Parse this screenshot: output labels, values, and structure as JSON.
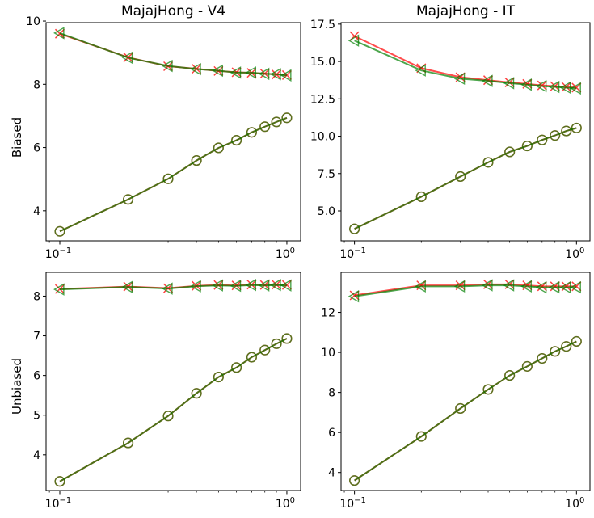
{
  "figure": {
    "row_labels": [
      "Biased",
      "Unbiased"
    ]
  },
  "chart_data": [
    {
      "type": "line",
      "title": "MajajHong - V4",
      "ylabel": "Biased",
      "xscale": "log",
      "xlim": [
        0.087,
        1.15
      ],
      "ylim": [
        3.05,
        9.95
      ],
      "yticks": [
        4,
        6,
        8,
        10
      ],
      "ytick_labels": [
        "4",
        "6",
        "8",
        "10"
      ],
      "xticks": [
        0.1,
        1
      ],
      "xtick_labels": [
        "10",
        "10"
      ],
      "xtick_exponents": [
        "−1",
        "0"
      ],
      "x": [
        0.1,
        0.2,
        0.3,
        0.4,
        0.5,
        0.6,
        0.7,
        0.8,
        0.9,
        1.0
      ],
      "series": [
        {
          "color": "#ff0000",
          "marker": "x",
          "values": [
            9.6,
            8.85,
            8.57,
            8.49,
            8.42,
            8.38,
            8.36,
            8.34,
            8.31,
            8.29
          ]
        },
        {
          "color": "#008000",
          "marker": "triangle-left",
          "values": [
            9.62,
            8.84,
            8.58,
            8.48,
            8.43,
            8.37,
            8.37,
            8.33,
            8.32,
            8.28
          ]
        },
        {
          "color": "#ff0000",
          "marker": "o",
          "values": [
            3.35,
            4.36,
            5.01,
            5.59,
            5.99,
            6.23,
            6.48,
            6.66,
            6.81,
            6.94
          ]
        },
        {
          "color": "#008000",
          "marker": "o",
          "values": [
            3.35,
            4.36,
            5.01,
            5.59,
            5.99,
            6.23,
            6.48,
            6.66,
            6.81,
            6.94
          ]
        }
      ]
    },
    {
      "type": "line",
      "title": "MajajHong - IT",
      "ylabel": "",
      "xscale": "log",
      "xlim": [
        0.087,
        1.15
      ],
      "ylim": [
        3.0,
        17.6
      ],
      "yticks": [
        5.0,
        7.5,
        10.0,
        12.5,
        15.0,
        17.5
      ],
      "ytick_labels": [
        "5.0",
        "7.5",
        "10.0",
        "12.5",
        "15.0",
        "17.5"
      ],
      "xticks": [
        0.1,
        1
      ],
      "xtick_labels": [
        "10",
        "10"
      ],
      "xtick_exponents": [
        "−1",
        "0"
      ],
      "x": [
        0.1,
        0.2,
        0.3,
        0.4,
        0.5,
        0.6,
        0.7,
        0.8,
        0.9,
        1.0
      ],
      "series": [
        {
          "color": "#ff0000",
          "marker": "x",
          "values": [
            16.7,
            14.55,
            13.95,
            13.75,
            13.6,
            13.5,
            13.4,
            13.35,
            13.3,
            13.25
          ]
        },
        {
          "color": "#008000",
          "marker": "triangle-left",
          "values": [
            16.4,
            14.4,
            13.85,
            13.7,
            13.55,
            13.45,
            13.35,
            13.3,
            13.25,
            13.2
          ]
        },
        {
          "color": "#ff0000",
          "marker": "o",
          "values": [
            3.8,
            5.95,
            7.3,
            8.25,
            8.95,
            9.35,
            9.75,
            10.05,
            10.35,
            10.55
          ]
        },
        {
          "color": "#008000",
          "marker": "o",
          "values": [
            3.8,
            5.95,
            7.3,
            8.25,
            8.95,
            9.35,
            9.75,
            10.05,
            10.35,
            10.55
          ]
        }
      ]
    },
    {
      "type": "line",
      "title": "",
      "ylabel": "Unbiased",
      "xscale": "log",
      "xlim": [
        0.087,
        1.15
      ],
      "ylim": [
        3.1,
        8.6
      ],
      "yticks": [
        4,
        5,
        6,
        7,
        8
      ],
      "ytick_labels": [
        "4",
        "5",
        "6",
        "7",
        "8"
      ],
      "xticks": [
        0.1,
        1
      ],
      "xtick_labels": [
        "10",
        "10"
      ],
      "xtick_exponents": [
        "−1",
        "0"
      ],
      "x": [
        0.1,
        0.2,
        0.3,
        0.4,
        0.5,
        0.6,
        0.7,
        0.8,
        0.9,
        1.0
      ],
      "series": [
        {
          "color": "#ff0000",
          "marker": "x",
          "values": [
            8.18,
            8.24,
            8.2,
            8.26,
            8.28,
            8.27,
            8.29,
            8.28,
            8.29,
            8.28
          ]
        },
        {
          "color": "#008000",
          "marker": "triangle-left",
          "values": [
            8.17,
            8.23,
            8.19,
            8.25,
            8.27,
            8.26,
            8.28,
            8.27,
            8.28,
            8.27
          ]
        },
        {
          "color": "#ff0000",
          "marker": "o",
          "values": [
            3.33,
            4.3,
            4.98,
            5.55,
            5.96,
            6.2,
            6.46,
            6.64,
            6.8,
            6.93
          ]
        },
        {
          "color": "#008000",
          "marker": "o",
          "values": [
            3.33,
            4.3,
            4.98,
            5.55,
            5.96,
            6.2,
            6.46,
            6.64,
            6.8,
            6.93
          ]
        }
      ]
    },
    {
      "type": "line",
      "title": "",
      "ylabel": "",
      "xscale": "log",
      "xlim": [
        0.087,
        1.15
      ],
      "ylim": [
        3.1,
        14.0
      ],
      "yticks": [
        4,
        6,
        8,
        10,
        12
      ],
      "ytick_labels": [
        "4",
        "6",
        "8",
        "10",
        "12"
      ],
      "xticks": [
        0.1,
        1
      ],
      "xtick_labels": [
        "10",
        "10"
      ],
      "xtick_exponents": [
        "−1",
        "0"
      ],
      "x": [
        0.1,
        0.2,
        0.3,
        0.4,
        0.5,
        0.6,
        0.7,
        0.8,
        0.9,
        1.0
      ],
      "series": [
        {
          "color": "#ff0000",
          "marker": "x",
          "values": [
            12.85,
            13.35,
            13.35,
            13.4,
            13.4,
            13.35,
            13.3,
            13.3,
            13.3,
            13.3
          ]
        },
        {
          "color": "#008000",
          "marker": "triangle-left",
          "values": [
            12.8,
            13.3,
            13.3,
            13.35,
            13.35,
            13.3,
            13.25,
            13.25,
            13.25,
            13.25
          ]
        },
        {
          "color": "#ff0000",
          "marker": "o",
          "values": [
            3.6,
            5.8,
            7.2,
            8.15,
            8.85,
            9.3,
            9.7,
            10.05,
            10.3,
            10.55
          ]
        },
        {
          "color": "#008000",
          "marker": "o",
          "values": [
            3.6,
            5.8,
            7.2,
            8.15,
            8.85,
            9.3,
            9.7,
            10.05,
            10.3,
            10.55
          ]
        }
      ]
    }
  ]
}
